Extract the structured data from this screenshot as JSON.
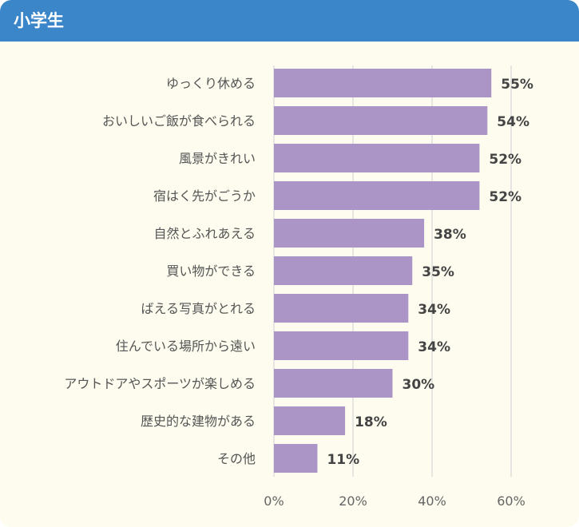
{
  "header": {
    "title": "小学生"
  },
  "colors": {
    "header_bg": "#3a86c9",
    "panel_bg": "#fdfcee",
    "bar": "#ab95c6",
    "grid": "#dddddd"
  },
  "chart_data": {
    "type": "bar",
    "orientation": "horizontal",
    "categories": [
      "ゆっくり休める",
      "おいしいご飯が食べられる",
      "風景がきれい",
      "宿はく先がごうか",
      "自然とふれあえる",
      "買い物ができる",
      "ばえる写真がとれる",
      "住んでいる場所から遠い",
      "アウトドアやスポーツが楽しめる",
      "歴史的な建物がある",
      "その他"
    ],
    "values": [
      55,
      54,
      52,
      52,
      38,
      35,
      34,
      34,
      30,
      18,
      11
    ],
    "value_labels": [
      "55%",
      "54%",
      "52%",
      "52%",
      "38%",
      "35%",
      "34%",
      "34%",
      "30%",
      "18%",
      "11%"
    ],
    "xlim": [
      0,
      60
    ],
    "ticks": [
      0,
      20,
      40,
      60
    ],
    "tick_labels": [
      "0%",
      "20%",
      "40%",
      "60%"
    ],
    "grid": true
  }
}
